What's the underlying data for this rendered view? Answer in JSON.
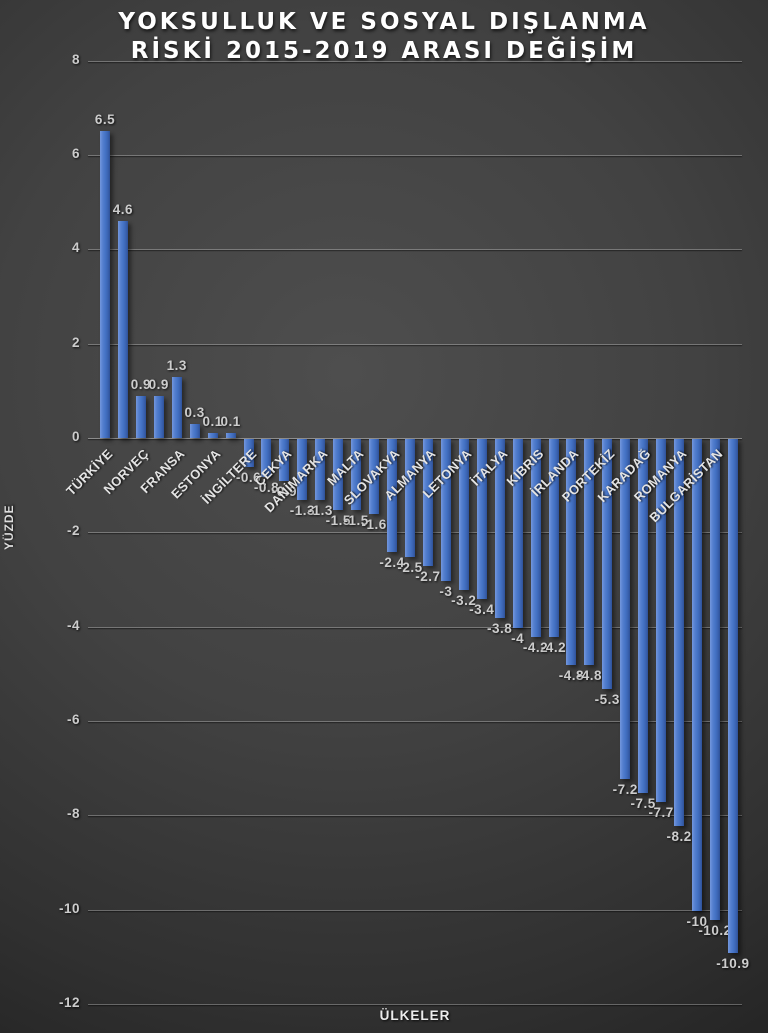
{
  "style": {
    "background_center": "#4e4e4e",
    "background_edge": "#121212",
    "bar_color": "#4472c4",
    "bar_highlight": "#7397dd",
    "bar_shadow_color": "#1a1a1a",
    "gridline_color": "rgba(255,255,255,0.28)",
    "title_color": "#ffffff",
    "label_color": "#cdcdcd",
    "category_color": "#e3e3e3"
  },
  "chart_data": {
    "type": "bar",
    "title": "YOKSULLUK VE SOSYAL DIŞLANMA RİSKİ 2015-2019 ARASI DEĞİŞİM",
    "title_lines": [
      "YOKSULLUK VE SOSYAL DIŞLANMA",
      "RİSKİ 2015-2019 ARASI DEĞİŞİM"
    ],
    "xlabel": "ÜLKELER",
    "ylabel": "YÜZDE",
    "ylim": [
      -12,
      8
    ],
    "y_ticks": [
      8,
      6,
      4,
      2,
      0,
      -2,
      -4,
      -6,
      -8,
      -10,
      -12
    ],
    "grid": true,
    "legend": false,
    "categories": [
      "TÜRKİYE",
      "",
      "NORVEÇ",
      "",
      "FRANSA",
      "",
      "ESTONYA",
      "",
      "İNGİLTERE",
      "",
      "ÇEKYA",
      "",
      "DANİMARKA",
      "",
      "MALTA",
      "",
      "SLOVAKYA",
      "",
      "ALMANYA",
      "",
      "LETONYA",
      "",
      "İTALYA",
      "",
      "KIBRIS",
      "",
      "İRLANDA",
      "",
      "PORTEKİZ",
      "",
      "KARADAĞ",
      "",
      "ROMANYA",
      "",
      "BULGARİSTAN",
      ""
    ],
    "values": [
      6.5,
      4.6,
      0.9,
      0.9,
      1.3,
      0.3,
      0.1,
      0.1,
      -0.6,
      -0.8,
      -0.9,
      -1.3,
      -1.3,
      -1.5,
      -1.5,
      -1.6,
      -2.4,
      -2.5,
      -2.7,
      -3,
      -3.2,
      -3.4,
      -3.8,
      -4,
      -4.2,
      -4.2,
      -4.8,
      -4.8,
      -5.3,
      -7.2,
      -7.5,
      -7.7,
      -8.2,
      -10,
      -10.2,
      -10.9
    ],
    "value_labels": [
      "6.5",
      "4.6",
      "0.9",
      "0.9",
      "1.3",
      "0.3",
      "0.1",
      "0.1",
      "-0.6",
      "-0.8",
      "-0.9",
      "-1.3",
      "-1.3",
      "-1.5",
      "-1.5",
      "-1.6",
      "-2.4",
      "-2.5",
      "-2.7",
      "-3",
      "-3.2",
      "-3.4",
      "-3.8",
      "-4",
      "-4.2",
      "-4.2",
      "-4.8",
      "-4.8",
      "-5.3",
      "-7.2",
      "-7.5",
      "-7.7",
      "-8.2",
      "-10",
      "-10.2",
      "-10.9"
    ]
  }
}
